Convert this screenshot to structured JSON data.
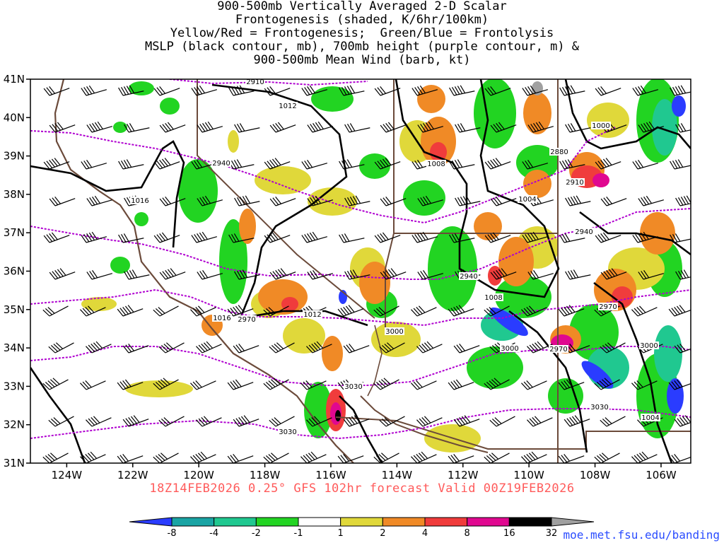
{
  "title_lines": [
    "900-500mb Vertically Averaged 2-D Scalar",
    "Frontogenesis (shaded, K/6hr/100km)",
    "Yellow/Red = Frontogenesis;  Green/Blue = Frontolysis",
    "MSLP (black contour, mb), 700mb height (purple contour, m) &",
    "900-500mb Mean Wind (barb, kt)"
  ],
  "map": {
    "lat_range": [
      31,
      41
    ],
    "lon_range": [
      -125.1,
      -105.1
    ],
    "lat_ticks": [
      "31N",
      "32N",
      "33N",
      "34N",
      "35N",
      "36N",
      "37N",
      "38N",
      "39N",
      "40N",
      "41N"
    ],
    "lon_ticks": [
      "124W",
      "122W",
      "120W",
      "118W",
      "116W",
      "114W",
      "112W",
      "110W",
      "108W",
      "106W"
    ],
    "mslp_labels": [
      "1012",
      "1016",
      "1008",
      "1004",
      "1000",
      "1012",
      "1016",
      "1008",
      "1004"
    ],
    "height_labels": [
      "2910",
      "2940",
      "2880",
      "2910",
      "2940",
      "2940",
      "2970",
      "2970",
      "3000",
      "2970",
      "3000",
      "3000",
      "3030",
      "3030",
      "3030"
    ],
    "colors": {
      "mslp": "#000000",
      "height": "#b000d0",
      "borders": "#6b4a3a",
      "coast": "#6b4a3a"
    }
  },
  "colorbar": {
    "labels": [
      "-8",
      "-4",
      "-2",
      "-1",
      "1",
      "2",
      "4",
      "8",
      "16",
      "32"
    ],
    "colors": [
      "#2a3cff",
      "#1aa4a4",
      "#20c890",
      "#22d422",
      "#ffffff",
      "#e0d83a",
      "#f08a26",
      "#f03c3c",
      "#e00890",
      "#000000",
      "#a0a0a0"
    ]
  },
  "forecast_line": "18Z14FEB2026 0.25° GFS 102hr forecast Valid 00Z19FEB2026",
  "credit": "moe.met.fsu.edu/banding"
}
